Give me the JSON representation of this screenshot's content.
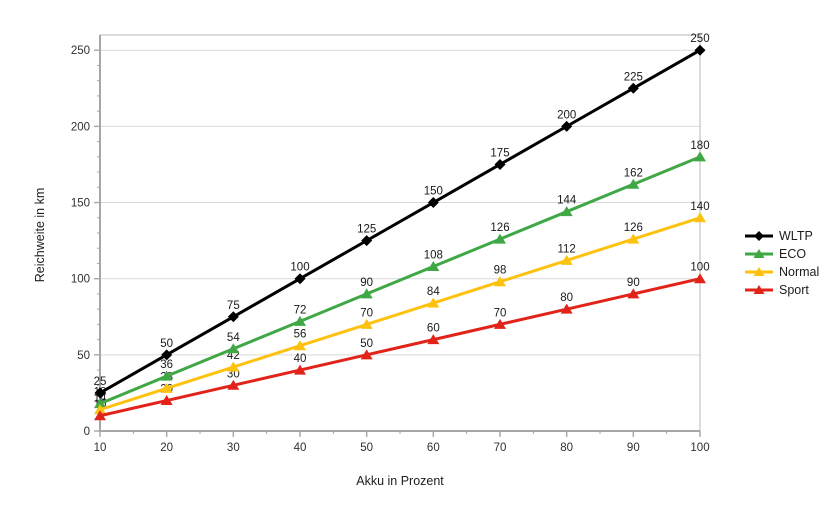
{
  "chart_data": {
    "type": "line",
    "title": "",
    "xlabel": "Akku in Prozent",
    "ylabel": "Reichweite in km",
    "x": [
      10,
      20,
      30,
      40,
      50,
      60,
      70,
      80,
      90,
      100
    ],
    "xlim": [
      10,
      100
    ],
    "ylim": [
      0,
      260
    ],
    "x_ticks": [
      10,
      20,
      30,
      40,
      50,
      60,
      70,
      80,
      90,
      100
    ],
    "x_minor_step": 5,
    "y_ticks": [
      0,
      50,
      100,
      150,
      200,
      250
    ],
    "y_minor_step": 10,
    "grid": "horizontal-major",
    "data_labels": true,
    "legend_position": "right",
    "series": [
      {
        "name": "WLTP",
        "color": "#000000",
        "marker": "diamond",
        "values": [
          25,
          50,
          75,
          100,
          125,
          150,
          175,
          200,
          225,
          250
        ]
      },
      {
        "name": "ECO",
        "color": "#3fa845",
        "marker": "triangle",
        "values": [
          18,
          36,
          54,
          72,
          90,
          108,
          126,
          144,
          162,
          180
        ]
      },
      {
        "name": "Normal",
        "color": "#fdc20f",
        "marker": "triangle",
        "values": [
          14,
          28,
          42,
          56,
          70,
          84,
          98,
          112,
          126,
          140
        ]
      },
      {
        "name": "Sport",
        "color": "#e2231a",
        "marker": "triangle",
        "values": [
          10,
          20,
          30,
          40,
          50,
          60,
          70,
          80,
          90,
          100
        ]
      }
    ],
    "style": {
      "gridline_color": "#d9d9d9",
      "axis_line_color": "#a6a6a6",
      "border_color": "#b7b7b7",
      "tick_label_color": "#303030",
      "data_label_color": "#1a1a1a"
    }
  }
}
